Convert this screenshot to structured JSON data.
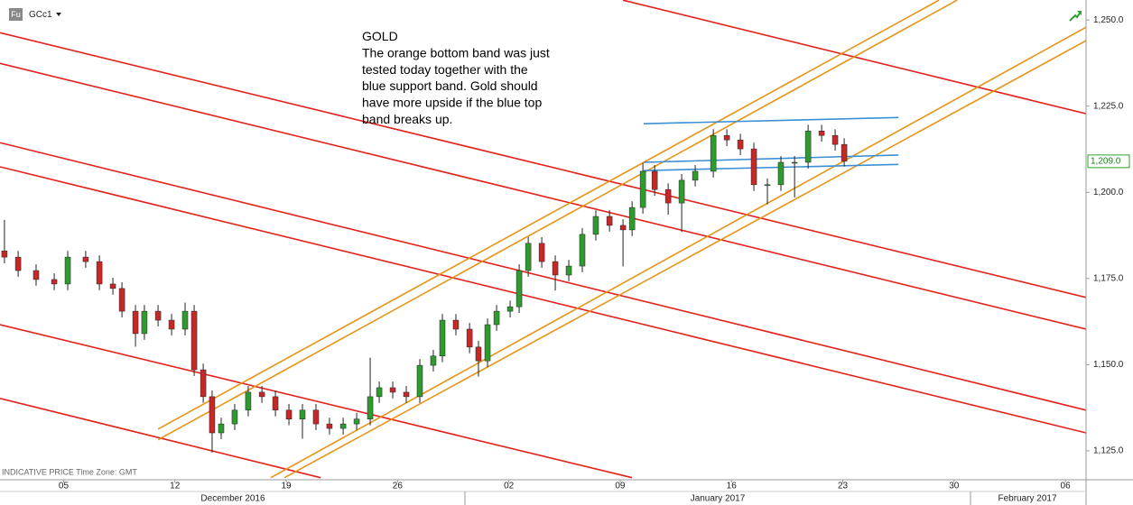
{
  "chart_data": {
    "type": "candlestick",
    "title": "GCc1",
    "badge": "Fu",
    "footer": "INDICATIVE PRICE   Time Zone: GMT",
    "annotation": [
      "GOLD",
      "The orange bottom band was just",
      "tested today together with the",
      "blue support band. Gold should",
      "have more upside if the blue top",
      "band breaks up."
    ],
    "months": [
      "December 2016",
      "January 2017",
      "February 2017"
    ],
    "colors": {
      "up": "#2f9a2f",
      "down": "#c62828",
      "wick": "#222222"
    },
    "xlim": [
      0,
      68.3
    ],
    "xticks": [
      {
        "value": 4,
        "label": "05"
      },
      {
        "value": 11,
        "label": "12"
      },
      {
        "value": 18,
        "label": "19"
      },
      {
        "value": 25,
        "label": "26"
      },
      {
        "value": 32,
        "label": "02"
      },
      {
        "value": 39,
        "label": "09"
      },
      {
        "value": 46,
        "label": "16"
      },
      {
        "value": 53,
        "label": "23"
      },
      {
        "value": 60,
        "label": "30"
      },
      {
        "value": 67,
        "label": "06"
      }
    ],
    "ylim": [
      1116.6,
      1255.8
    ],
    "yticks": [
      {
        "value": 1125,
        "label": "1,125.0"
      },
      {
        "value": 1150,
        "label": "1,150.0"
      },
      {
        "value": 1175,
        "label": "1,175.0"
      },
      {
        "value": 1200,
        "label": "1,200.0"
      },
      {
        "value": 1225,
        "label": "1,225.0"
      },
      {
        "value": 1250,
        "label": "1,250.0"
      }
    ],
    "last_price": {
      "value": 1209.0,
      "label": "1,209.0"
    },
    "x": [
      0.28,
      1.14,
      2.27,
      3.41,
      4.26,
      5.39,
      6.25,
      7.1,
      7.67,
      8.52,
      9.08,
      9.94,
      10.79,
      11.64,
      12.21,
      12.78,
      13.34,
      13.91,
      14.76,
      15.61,
      16.47,
      17.32,
      18.17,
      19.02,
      19.87,
      20.72,
      21.58,
      22.43,
      23.28,
      23.85,
      24.7,
      25.55,
      26.4,
      27.25,
      27.82,
      28.67,
      29.53,
      30.09,
      30.66,
      31.23,
      32.08,
      32.65,
      33.22,
      34.07,
      34.92,
      35.77,
      36.62,
      37.47,
      38.33,
      39.18,
      39.75,
      40.43,
      41.17,
      42.02,
      42.87,
      43.72,
      44.86,
      45.71,
      46.56,
      47.41,
      48.26,
      49.11,
      49.97,
      50.82,
      51.67,
      52.52,
      53.09
    ],
    "open": [
      1183.0,
      1181.2,
      1177.3,
      1174.7,
      1173.4,
      1181.2,
      1179.9,
      1173.4,
      1172.1,
      1165.5,
      1159.0,
      1165.5,
      1162.9,
      1160.3,
      1165.5,
      1148.5,
      1140.7,
      1130.2,
      1132.8,
      1136.8,
      1142.0,
      1140.7,
      1136.8,
      1134.2,
      1136.8,
      1132.8,
      1131.5,
      1132.8,
      1134.2,
      1140.7,
      1143.3,
      1142.0,
      1140.7,
      1149.8,
      1152.5,
      1162.9,
      1160.3,
      1155.1,
      1151.1,
      1161.6,
      1165.5,
      1166.8,
      1177.3,
      1185.2,
      1179.9,
      1176.0,
      1178.6,
      1187.8,
      1193.0,
      1190.4,
      1189.1,
      1195.6,
      1206.1,
      1200.8,
      1196.9,
      1203.5,
      1206.1,
      1216.5,
      1215.2,
      1212.6,
      1202.2,
      1202.2,
      1208.7,
      1208.7,
      1217.8,
      1216.5,
      1213.9
    ],
    "high": [
      1192.0,
      1183.0,
      1179.1,
      1176.5,
      1183.0,
      1183.0,
      1181.7,
      1175.2,
      1173.9,
      1167.3,
      1167.3,
      1167.3,
      1164.7,
      1168.0,
      1167.3,
      1150.3,
      1142.5,
      1134.6,
      1138.6,
      1143.8,
      1143.8,
      1142.5,
      1138.6,
      1138.6,
      1138.6,
      1134.6,
      1134.6,
      1136.0,
      1152.0,
      1145.1,
      1145.1,
      1143.8,
      1151.6,
      1154.3,
      1164.7,
      1164.7,
      1162.1,
      1156.9,
      1163.4,
      1167.3,
      1168.6,
      1179.1,
      1187.0,
      1187.0,
      1181.7,
      1180.4,
      1189.6,
      1194.8,
      1194.8,
      1192.2,
      1197.4,
      1208.5,
      1207.9,
      1202.6,
      1205.3,
      1207.9,
      1218.3,
      1218.3,
      1217.0,
      1214.4,
      1204.0,
      1210.5,
      1210.5,
      1219.6,
      1219.6,
      1218.3,
      1215.7
    ],
    "low": [
      1179.4,
      1175.5,
      1172.9,
      1171.6,
      1171.6,
      1178.1,
      1171.6,
      1170.3,
      1163.7,
      1155.2,
      1157.2,
      1161.1,
      1158.5,
      1158.5,
      1146.7,
      1138.9,
      1124.5,
      1128.4,
      1131.0,
      1135.0,
      1138.9,
      1135.0,
      1132.4,
      1128.5,
      1131.0,
      1129.7,
      1129.7,
      1131.0,
      1132.4,
      1138.9,
      1140.2,
      1138.9,
      1138.9,
      1148.0,
      1150.7,
      1158.5,
      1153.3,
      1146.5,
      1149.3,
      1159.8,
      1163.7,
      1165.0,
      1175.5,
      1178.1,
      1171.5,
      1174.2,
      1176.8,
      1186.0,
      1188.6,
      1178.5,
      1187.3,
      1193.8,
      1199.0,
      1193.5,
      1188.5,
      1201.7,
      1204.3,
      1213.4,
      1210.8,
      1200.4,
      1196.5,
      1200.4,
      1198.5,
      1206.9,
      1214.7,
      1212.1,
      1207.5
    ],
    "close": [
      1181.2,
      1177.3,
      1174.7,
      1173.4,
      1181.2,
      1179.9,
      1173.4,
      1172.1,
      1165.5,
      1159.0,
      1165.5,
      1162.9,
      1160.3,
      1165.5,
      1148.5,
      1140.7,
      1130.2,
      1132.8,
      1136.8,
      1142.0,
      1140.7,
      1136.8,
      1134.2,
      1136.8,
      1132.8,
      1131.5,
      1132.8,
      1134.2,
      1140.7,
      1143.3,
      1142.0,
      1140.7,
      1149.8,
      1152.5,
      1162.9,
      1160.3,
      1155.1,
      1151.1,
      1161.6,
      1165.5,
      1166.8,
      1177.3,
      1185.2,
      1179.9,
      1176.0,
      1178.6,
      1187.8,
      1193.0,
      1190.4,
      1189.1,
      1195.6,
      1206.1,
      1200.8,
      1196.9,
      1203.5,
      1206.1,
      1216.5,
      1215.2,
      1212.6,
      1202.2,
      1202.2,
      1208.7,
      1208.7,
      1217.8,
      1216.5,
      1213.9,
      1209.0
    ],
    "trendlines": [
      {
        "color": "#e3201b",
        "x": [
          39.18,
          68.3
        ],
        "y": [
          1255.75,
          1222.8
        ]
      },
      {
        "color": "#e3201b",
        "x": [
          0,
          68.3
        ],
        "y": [
          1246.3,
          1169.5
        ]
      },
      {
        "color": "#e3201b",
        "x": [
          0,
          68.3
        ],
        "y": [
          1237.4,
          1160.3
        ]
      },
      {
        "color": "#e3201b",
        "x": [
          0,
          68.3
        ],
        "y": [
          1214.4,
          1136.8
        ]
      },
      {
        "color": "#e3201b",
        "x": [
          0,
          68.3
        ],
        "y": [
          1207.4,
          1130.2
        ]
      },
      {
        "color": "#e3201b",
        "x": [
          0,
          39.75
        ],
        "y": [
          1161.6,
          1117.2
        ]
      },
      {
        "color": "#e3201b",
        "x": [
          0,
          20.16
        ],
        "y": [
          1140.2,
          1117.2
        ]
      },
      {
        "color": "#e69317",
        "x": [
          9.94,
          59.05
        ],
        "y": [
          1131.3,
          1255.75
        ]
      },
      {
        "color": "#e69317",
        "x": [
          9.94,
          60.19
        ],
        "y": [
          1128.2,
          1255.75
        ]
      },
      {
        "color": "#e69317",
        "x": [
          17.03,
          68.3
        ],
        "y": [
          1117.2,
          1247.9
        ]
      },
      {
        "color": "#e69317",
        "x": [
          17.89,
          68.3
        ],
        "y": [
          1117.2,
          1244.0
        ]
      },
      {
        "color": "#3b8fd4",
        "x": [
          40.48,
          56.5
        ],
        "y": [
          1219.9,
          1221.7
        ]
      },
      {
        "color": "#3b8fd4",
        "x": [
          40.48,
          56.5
        ],
        "y": [
          1208.7,
          1210.8
        ]
      },
      {
        "color": "#3b8fd4",
        "x": [
          40.48,
          56.5
        ],
        "y": [
          1206.3,
          1208.1
        ]
      }
    ]
  }
}
